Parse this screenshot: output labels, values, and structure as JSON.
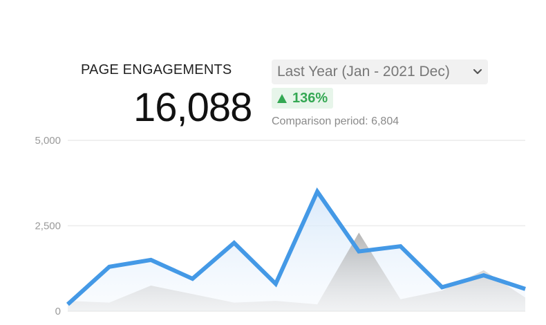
{
  "widget": {
    "title": "PAGE ENGAGEMENTS",
    "value": "16,088",
    "period_label": "Last Year (Jan - 2021 Dec)",
    "change": "136%",
    "comparison_text": "Comparison period: 6,804",
    "colors": {
      "current_line": "#4499e6",
      "positive": "#34a853",
      "comparison_area": "#bdbdbd"
    },
    "icons": {
      "dropdown": "chevron-down-icon",
      "change": "triangle-up-icon"
    }
  },
  "chart_data": {
    "type": "line",
    "ylim": [
      0,
      5000
    ],
    "yticks": [
      0,
      2500,
      5000
    ],
    "ytick_labels": [
      "0",
      "2,500",
      "5,000"
    ],
    "grid": true,
    "series": [
      {
        "values": [
          200,
          1300,
          1500,
          950,
          2000,
          800,
          3500,
          1750,
          1900,
          700,
          1050,
          650
        ]
      },
      {
        "values": [
          300,
          250,
          750,
          500,
          250,
          300,
          200,
          2300,
          350,
          600,
          1200,
          400
        ]
      }
    ]
  }
}
